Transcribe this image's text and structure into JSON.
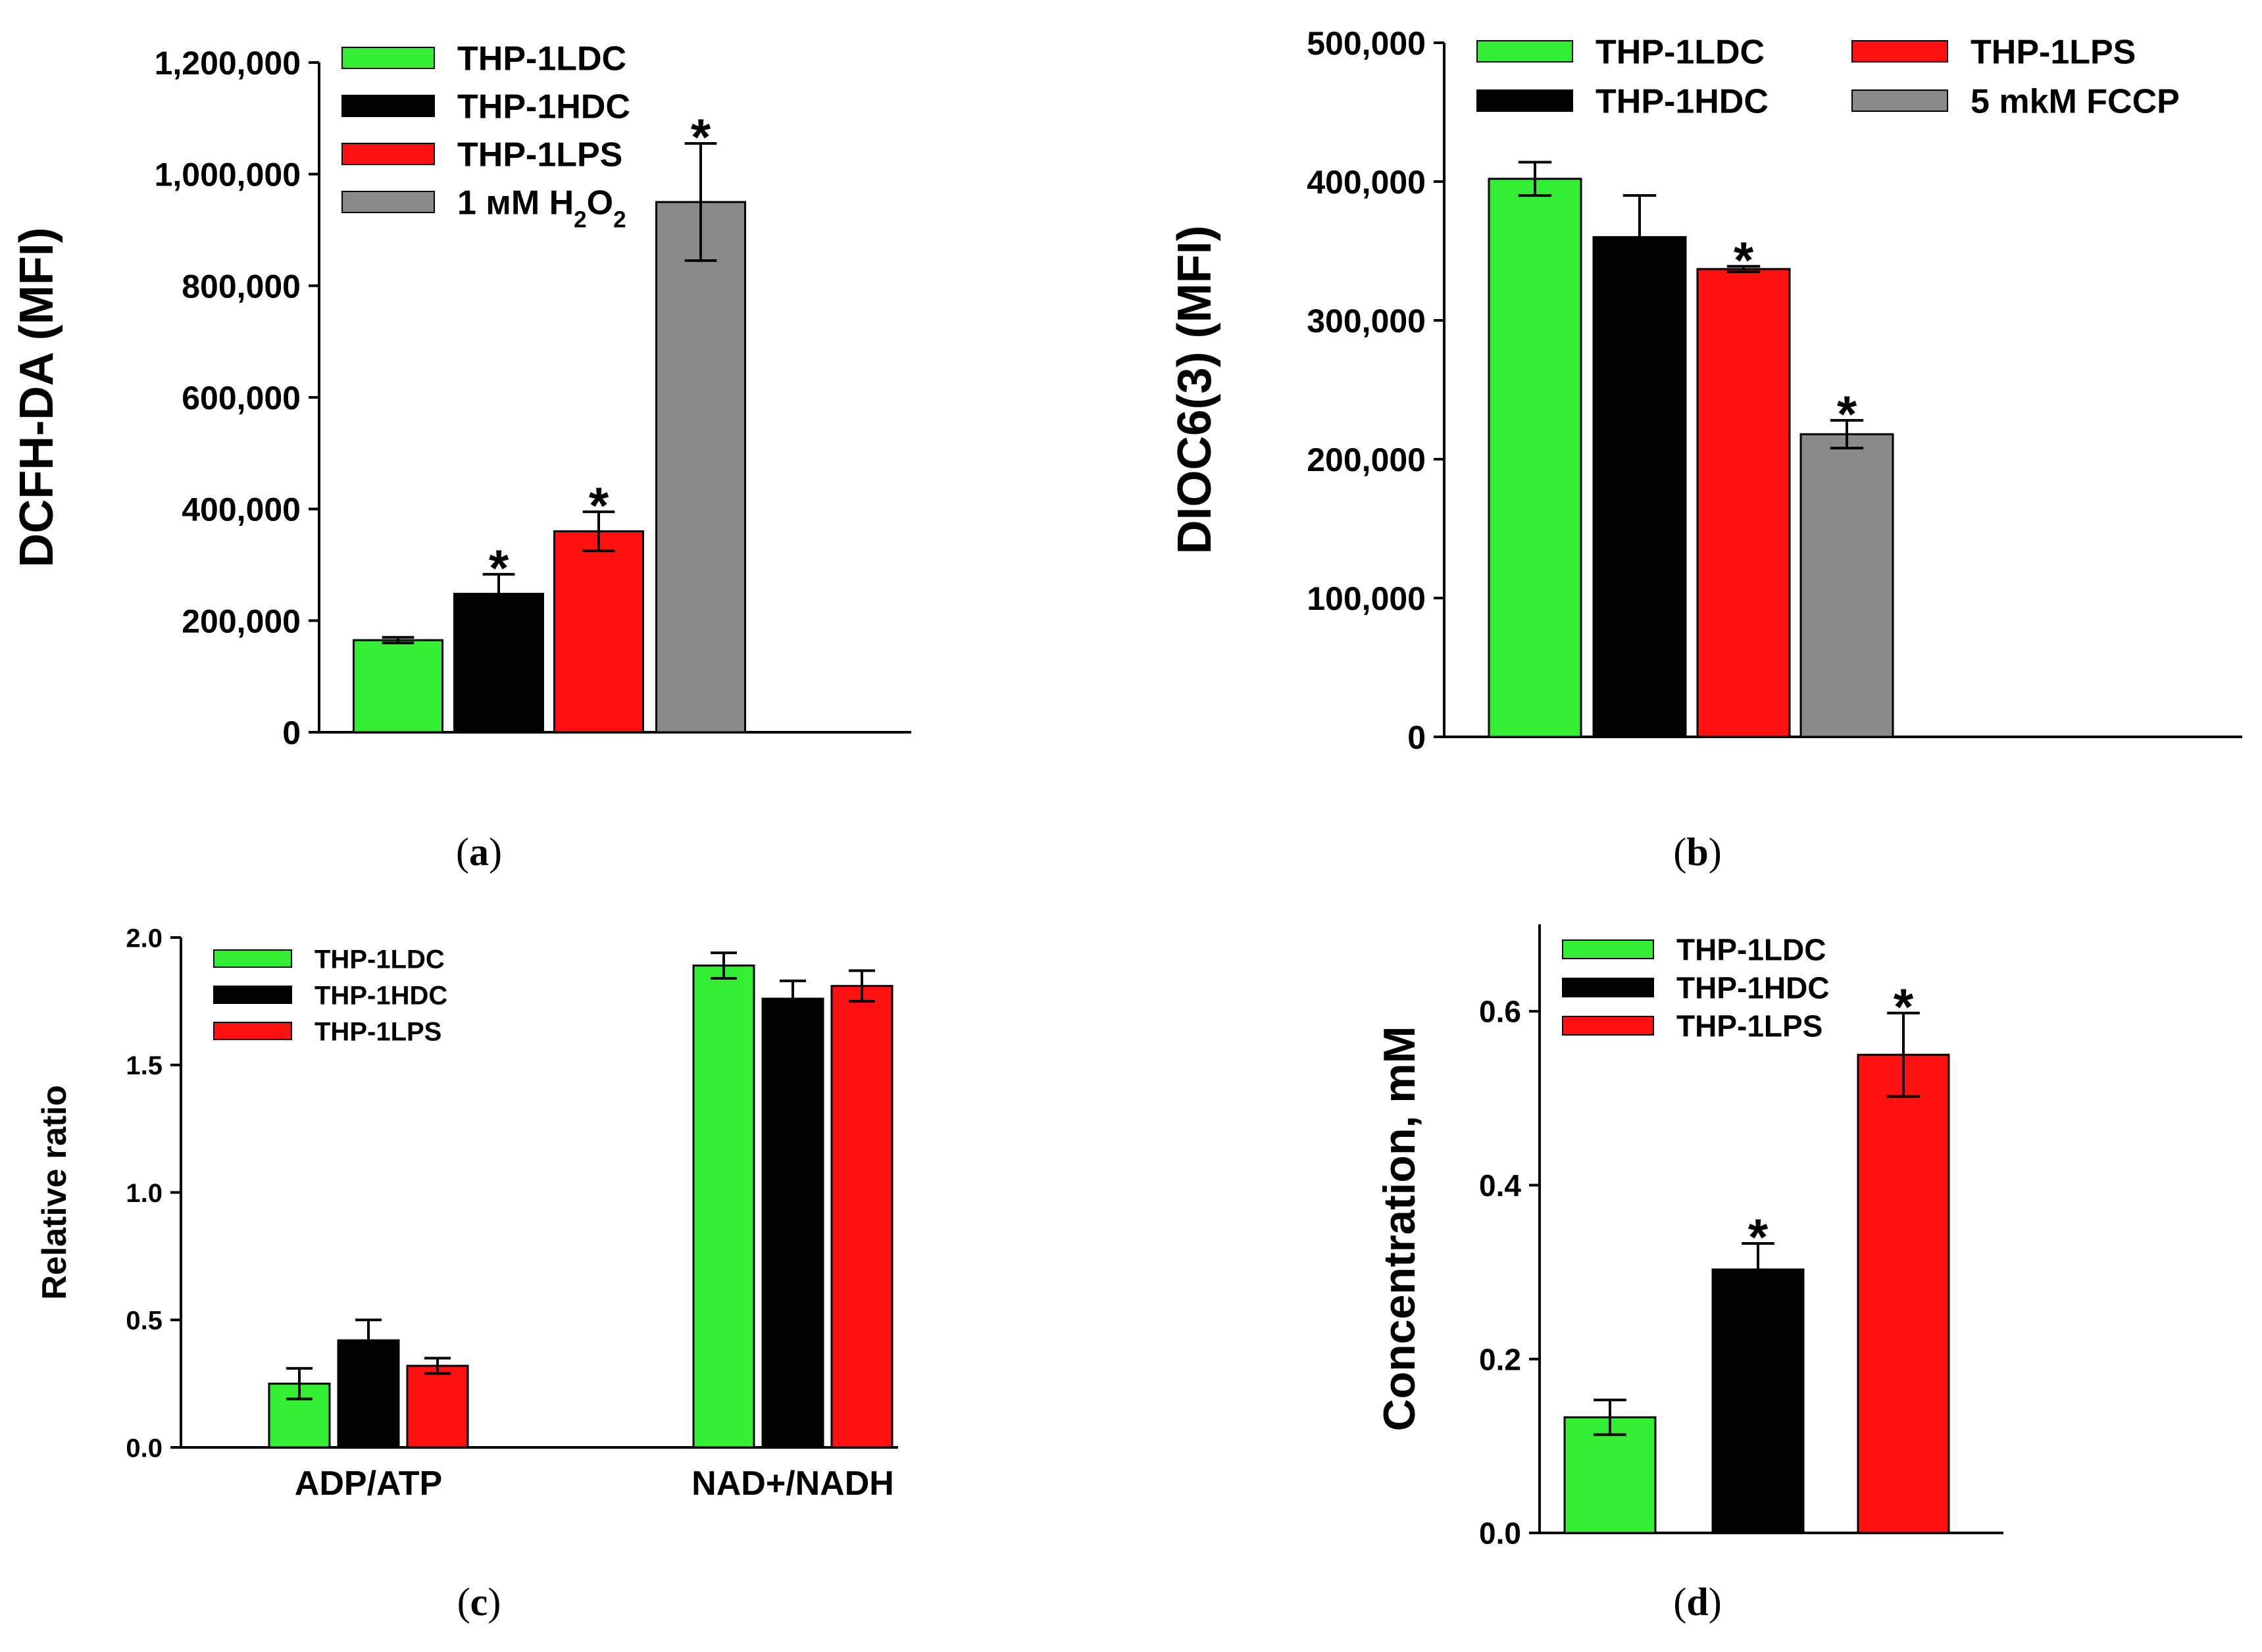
{
  "colors": {
    "THP-1LDC": "#33ee33",
    "THP-1HDC": "#000000",
    "THP-1LPS": "#ff1111",
    "gray": "#8a8a8a",
    "outline": "#000000"
  },
  "chart_data": [
    {
      "id": "a",
      "type": "bar",
      "panel_label": "a",
      "ylabel": "DCFH-DA (MFI)",
      "ylim": [
        0,
        1200000
      ],
      "yticks": [
        0,
        200000,
        400000,
        600000,
        800000,
        1000000,
        1200000
      ],
      "ytick_labels": [
        "0",
        "200,000",
        "400,000",
        "600,000",
        "800,000",
        "1,000,000",
        "1,200,000"
      ],
      "legend_position": "top-left",
      "series": [
        {
          "name": "THP-1LDC",
          "value": 165000,
          "error": 5000,
          "star": ""
        },
        {
          "name": "THP-1HDC",
          "value": 248000,
          "error": 35000,
          "star": "*"
        },
        {
          "name": "THP-1LPS",
          "value": 360000,
          "error": 35000,
          "star": "*"
        },
        {
          "name": "1 мM H₂O₂",
          "value": 950000,
          "error": 105000,
          "star": "*"
        }
      ]
    },
    {
      "id": "b",
      "type": "bar",
      "panel_label": "b",
      "ylabel": "DIOC6(3) (MFI)",
      "ylim": [
        0,
        500000
      ],
      "yticks": [
        0,
        100000,
        200000,
        300000,
        400000,
        500000
      ],
      "ytick_labels": [
        "0",
        "100,000",
        "200,000",
        "300,000",
        "400,000",
        "500,000"
      ],
      "legend_position": "top, two columns",
      "series": [
        {
          "name": "THP-1LDC",
          "value": 402000,
          "error": 12000,
          "star": ""
        },
        {
          "name": "THP-1HDC",
          "value": 360000,
          "error": 30000,
          "star": ""
        },
        {
          "name": "THP-1LPS",
          "value": 337000,
          "error": 2000,
          "star": "*"
        },
        {
          "name": "5 mkM FCCP",
          "value": 218000,
          "error": 10000,
          "star": "*"
        }
      ]
    },
    {
      "id": "c",
      "type": "bar",
      "panel_label": "c",
      "ylabel": "Relative ratio",
      "ylim": [
        0,
        2.0
      ],
      "yticks": [
        0,
        0.5,
        1.0,
        1.5,
        2.0
      ],
      "ytick_labels": [
        "0.0",
        "0.5",
        "1.0",
        "1.5",
        "2.0"
      ],
      "legend_position": "top-left",
      "categories": [
        "ADP/ATP",
        "NAD+/NADH"
      ],
      "series": [
        {
          "name": "THP-1LDC",
          "values": [
            0.25,
            1.89
          ],
          "errors": [
            0.06,
            0.05
          ]
        },
        {
          "name": "THP-1HDC",
          "values": [
            0.42,
            1.76
          ],
          "errors": [
            0.08,
            0.07
          ]
        },
        {
          "name": "THP-1LPS",
          "values": [
            0.32,
            1.81
          ],
          "errors": [
            0.03,
            0.06
          ]
        }
      ]
    },
    {
      "id": "d",
      "type": "bar",
      "panel_label": "d",
      "ylabel": "Concentration, mM",
      "ylim": [
        0,
        0.7
      ],
      "yticks": [
        0,
        0.2,
        0.4,
        0.6
      ],
      "ytick_labels": [
        "0.0",
        "0.2",
        "0.4",
        "0.6"
      ],
      "legend_position": "top-left",
      "series": [
        {
          "name": "THP-1LDC",
          "value": 0.133,
          "error": 0.02,
          "star": ""
        },
        {
          "name": "THP-1HDC",
          "value": 0.303,
          "error": 0.03,
          "star": "*"
        },
        {
          "name": "THP-1LPS",
          "value": 0.55,
          "error": 0.048,
          "star": "*"
        }
      ]
    }
  ]
}
